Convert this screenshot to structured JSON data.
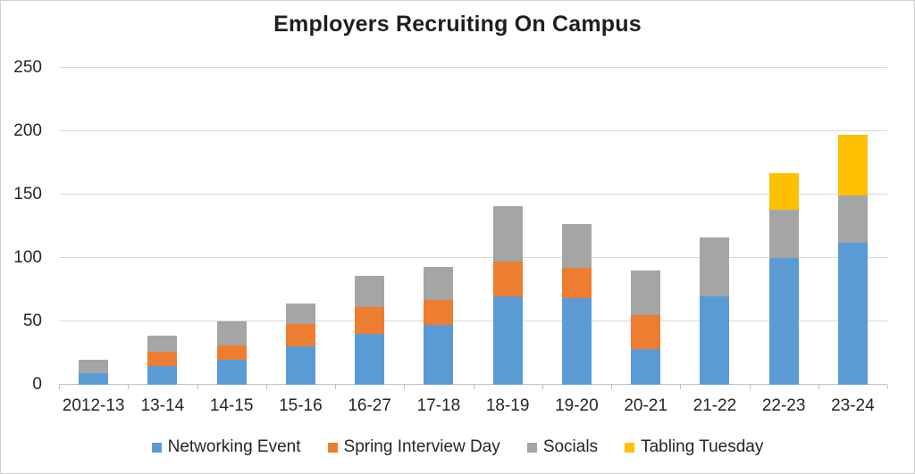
{
  "chart_data": {
    "type": "bar",
    "stacked": true,
    "title": "Employers Recruiting On Campus",
    "categories": [
      "2012-13",
      "13-14",
      "14-15",
      "15-16",
      "16-27",
      "17-18",
      "18-19",
      "19-20",
      "20-21",
      "21-22",
      "22-23",
      "23-24"
    ],
    "series": [
      {
        "name": "Networking Event",
        "color": "#5B9BD5",
        "values": [
          9,
          15,
          20,
          30,
          40,
          47,
          70,
          68,
          28,
          70,
          100,
          112
        ]
      },
      {
        "name": "Spring Interview Day",
        "color": "#ED7D31",
        "values": [
          0,
          11,
          11,
          18,
          21,
          20,
          27,
          24,
          27,
          0,
          0,
          0
        ]
      },
      {
        "name": "Socials",
        "color": "#A5A5A5",
        "values": [
          11,
          13,
          19,
          16,
          25,
          26,
          44,
          35,
          35,
          46,
          38,
          37
        ]
      },
      {
        "name": "Tabling Tuesday",
        "color": "#FFC000",
        "values": [
          0,
          0,
          0,
          0,
          0,
          0,
          0,
          0,
          0,
          0,
          29,
          48
        ]
      }
    ],
    "totals": [
      20,
      39,
      50,
      64,
      86,
      93,
      141,
      127,
      90,
      116,
      167,
      197
    ],
    "xlabel": "",
    "ylabel": "",
    "ylim": [
      0,
      250
    ],
    "yticks": [
      0,
      50,
      100,
      150,
      200,
      250
    ],
    "grid": true,
    "legend_position": "bottom"
  },
  "colors": {
    "gridline": "#D9D9D9",
    "axis_line": "#BFBFBF",
    "text": "#262626",
    "background": "#FFFFFF",
    "border": "#CFCFCF"
  }
}
